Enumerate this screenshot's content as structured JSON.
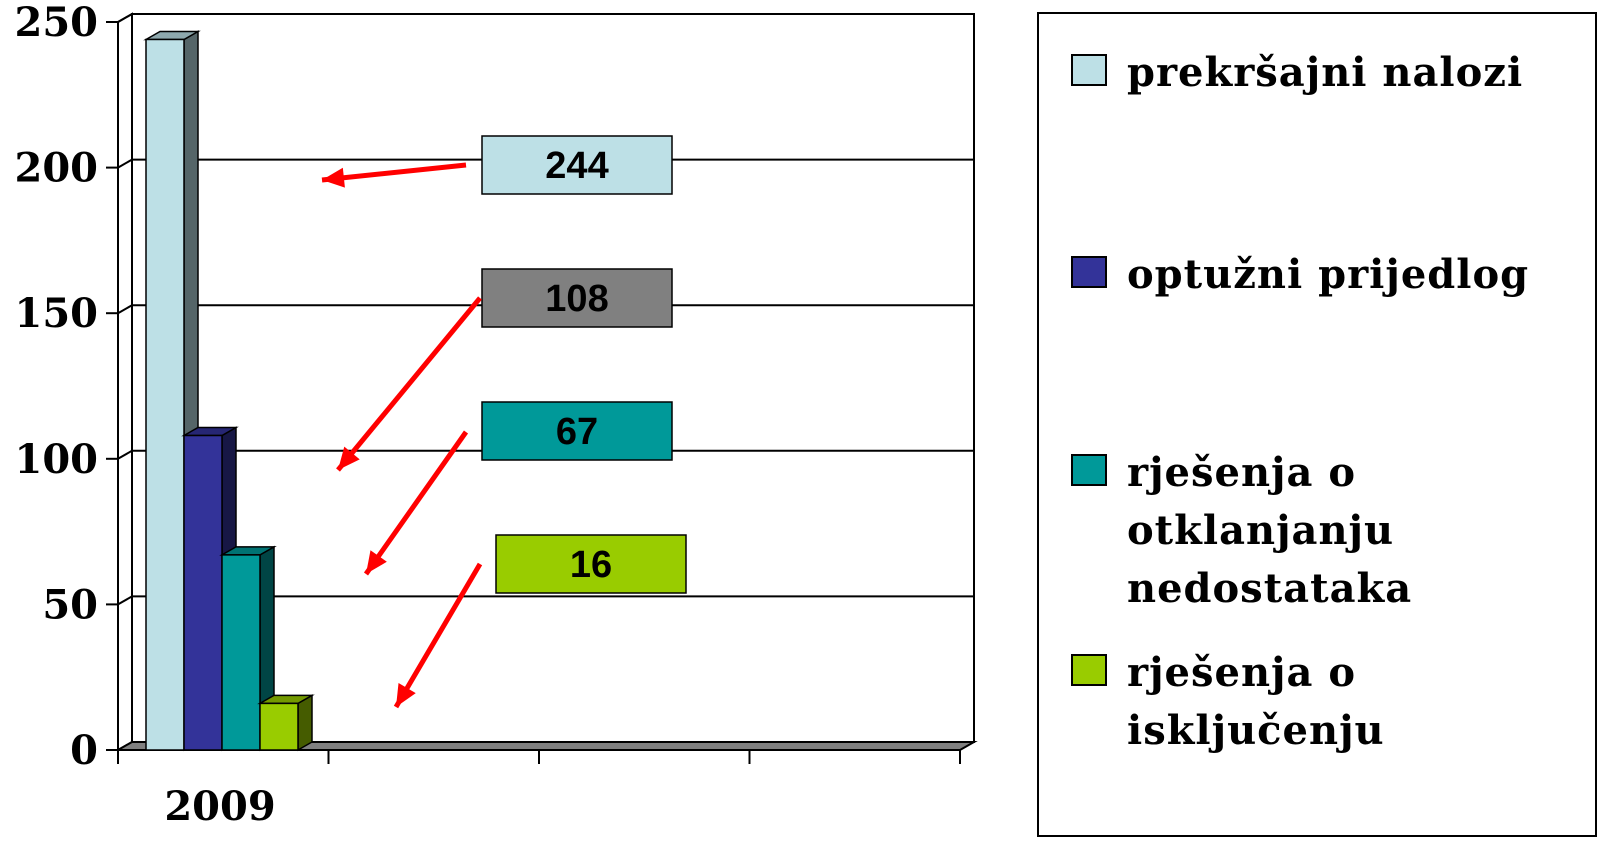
{
  "chart_data": {
    "type": "bar",
    "categories": [
      "2009"
    ],
    "series": [
      {
        "name": "prekršajni nalozi",
        "values": [
          244
        ],
        "color": "#BDE0E6"
      },
      {
        "name": "optužni prijedlog",
        "values": [
          108
        ],
        "color": "#333399"
      },
      {
        "name": "rješenja o otklanjanju nedostataka",
        "values": [
          67
        ],
        "color": "#009999"
      },
      {
        "name": "rješenja o isključenju",
        "values": [
          16
        ],
        "color": "#99CC00"
      }
    ],
    "callouts": [
      {
        "text": "244",
        "box_color": "#BDE0E6"
      },
      {
        "text": "108",
        "box_color": "#808080"
      },
      {
        "text": "67",
        "box_color": "#009999"
      },
      {
        "text": "16",
        "box_color": "#99CC00"
      }
    ],
    "y_ticks": [
      "0",
      "50",
      "100",
      "150",
      "200",
      "250"
    ],
    "ylim": [
      0,
      250
    ],
    "grid": true,
    "legend_position": "right",
    "style": "3d",
    "arrow_color": "#FF0000"
  },
  "legend": {
    "items": [
      {
        "label": "prekršajni nalozi",
        "color": "#BDE0E6"
      },
      {
        "label": "optužni prijedlog",
        "color": "#333399"
      },
      {
        "label": "rješenja o\notklanjanju\nnedostataka",
        "color": "#009999"
      },
      {
        "label": "rješenja o\nisključenju",
        "color": "#99CC00"
      }
    ]
  }
}
